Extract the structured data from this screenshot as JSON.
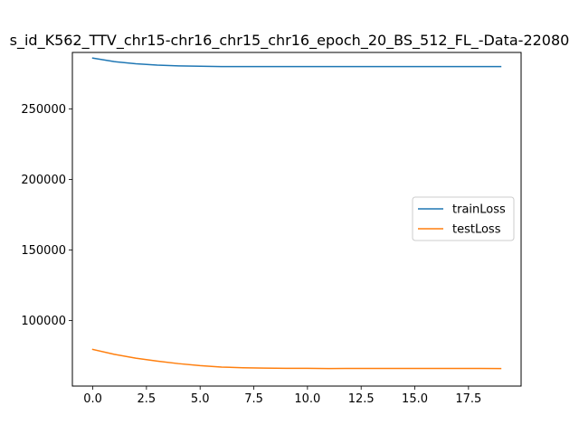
{
  "chart_data": {
    "type": "line",
    "title": "s_id_K562_TTV_chr15-chr16_chr15_chr16_epoch_20_BS_512_FL_-Data-22080",
    "xlabel": "",
    "ylabel": "",
    "xlim": [
      -0.95,
      19.95
    ],
    "ylim": [
      53500,
      290000
    ],
    "x_ticks": [
      0.0,
      2.5,
      5.0,
      7.5,
      10.0,
      12.5,
      15.0,
      17.5
    ],
    "x_tick_labels": [
      "0.0",
      "2.5",
      "5.0",
      "7.5",
      "10.0",
      "12.5",
      "15.0",
      "17.5"
    ],
    "y_ticks": [
      100000,
      150000,
      200000,
      250000
    ],
    "y_tick_labels": [
      "100000",
      "150000",
      "200000",
      "250000"
    ],
    "grid": false,
    "legend_position": "center-right",
    "x": [
      0,
      1,
      2,
      3,
      4,
      5,
      6,
      7,
      8,
      9,
      10,
      11,
      12,
      13,
      14,
      15,
      16,
      17,
      18,
      19
    ],
    "series": [
      {
        "name": "trainLoss",
        "color": "#1f77b4",
        "values": [
          286000,
          283500,
          282000,
          281000,
          280500,
          280200,
          280000,
          280000,
          280000,
          280000,
          280000,
          280000,
          280000,
          280000,
          280000,
          280000,
          280000,
          280000,
          280000,
          280000
        ]
      },
      {
        "name": "testLoss",
        "color": "#ff7f0e",
        "values": [
          79500,
          76000,
          73300,
          71200,
          69400,
          68000,
          67000,
          66500,
          66200,
          66100,
          66100,
          65900,
          66000,
          66000,
          66000,
          66000,
          66000,
          66000,
          66000,
          65900
        ]
      }
    ]
  }
}
